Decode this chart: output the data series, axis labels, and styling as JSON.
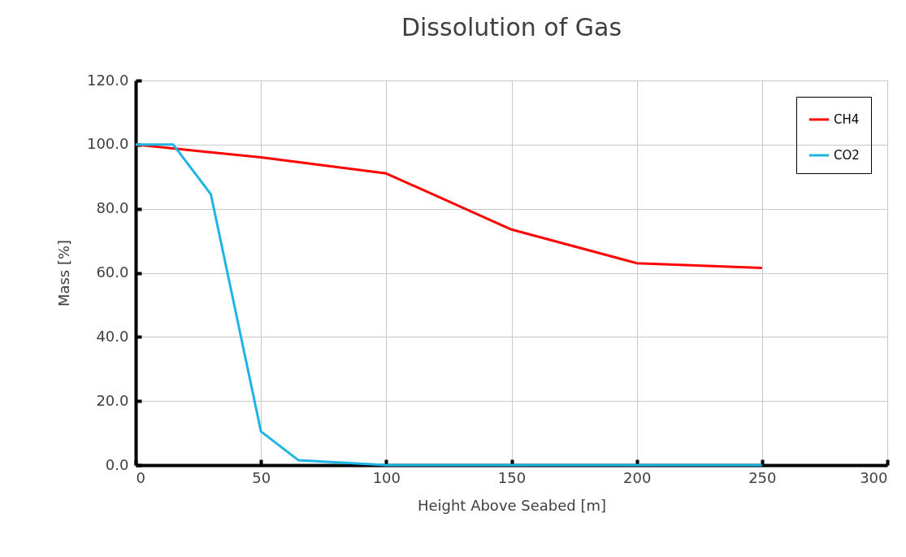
{
  "chart_data": {
    "type": "line",
    "title": "Dissolution of Gas",
    "xlabel": "Height  Above Seabed [m]",
    "ylabel": "Mass   [%]",
    "series": [
      {
        "name": "CH4",
        "color": "#ff0000",
        "x": [
          0,
          50,
          100,
          150,
          200,
          250
        ],
        "values": [
          100,
          96,
          91,
          73.5,
          63,
          61.5
        ]
      },
      {
        "name": "CO2",
        "color": "#1eb4e6",
        "x": [
          0,
          15,
          30,
          50,
          65,
          100,
          150,
          200,
          250
        ],
        "values": [
          100,
          100,
          84.5,
          10.5,
          1.5,
          0,
          0,
          0,
          0
        ]
      }
    ],
    "xlim": [
      0,
      300
    ],
    "xticks": [
      0,
      50,
      100,
      150,
      200,
      250,
      300
    ],
    "ylim": [
      0,
      120
    ],
    "yticks": [
      {
        "value": 0,
        "label": "0.0"
      },
      {
        "value": 20,
        "label": "20.0"
      },
      {
        "value": 40,
        "label": "40.0"
      },
      {
        "value": 60,
        "label": "60.0"
      },
      {
        "value": 80,
        "label": "80.0"
      },
      {
        "value": 100,
        "label": "100.0"
      },
      {
        "value": 120,
        "label": "120.0"
      }
    ],
    "grid": true,
    "legend": "top right",
    "marker": "none",
    "line_style": "solid"
  }
}
